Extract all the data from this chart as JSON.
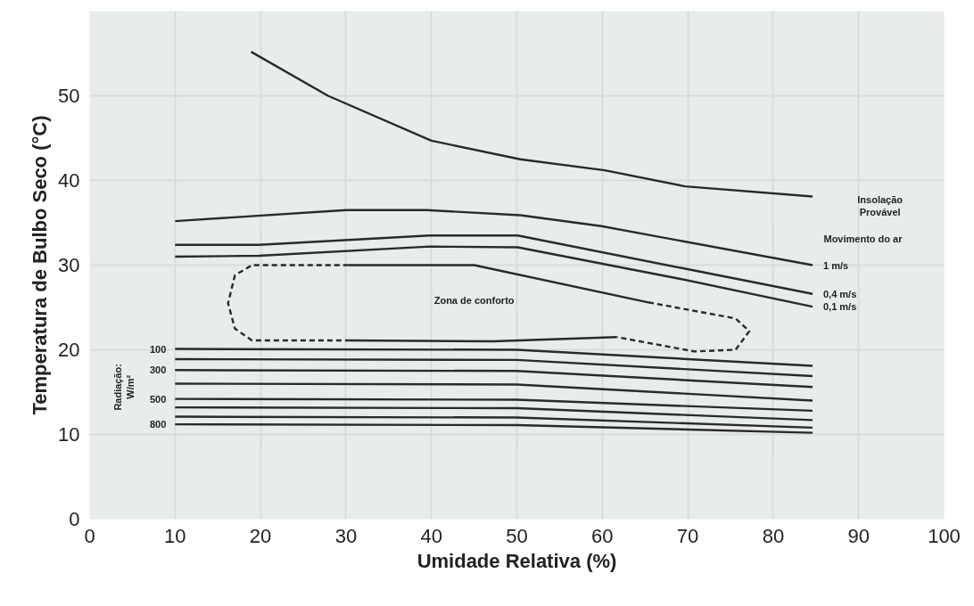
{
  "chart_data": {
    "type": "line",
    "xlabel": "Umidade Relativa (%)",
    "ylabel": "Temperatura de Bulbo Seco (°C)",
    "xlim": [
      0,
      100
    ],
    "ylim": [
      0,
      60
    ],
    "xticks": [
      0,
      10,
      20,
      30,
      40,
      50,
      60,
      70,
      80,
      90,
      100
    ],
    "yticks": [
      0,
      10,
      20,
      30,
      40,
      50
    ],
    "grid": true,
    "marker": "none",
    "series": [
      {
        "color": "#2a2a2a",
        "line_style": "solid",
        "x": [
          18.9,
          27.9,
          40,
          50.4,
          60.3,
          69.7,
          84.6
        ],
        "values": [
          55.2,
          50,
          44.7,
          42.5,
          41.2,
          39.3,
          38.1
        ]
      },
      {
        "name": "1  m/s",
        "color": "#2a2a2a",
        "line_style": "solid",
        "x": [
          10,
          30,
          39.5,
          50.4,
          59.9,
          84.6
        ],
        "values": [
          35.2,
          36.5,
          36.5,
          35.9,
          34.6,
          30.0
        ]
      },
      {
        "name": "0,4 m/s",
        "color": "#2a2a2a",
        "line_style": "solid",
        "x": [
          10,
          19.8,
          39.8,
          50.1,
          70.1,
          84.6
        ],
        "values": [
          32.4,
          32.4,
          33.5,
          33.5,
          29.5,
          26.6
        ]
      },
      {
        "name": "0,1 m/s",
        "color": "#2a2a2a",
        "line_style": "solid",
        "x": [
          10,
          19.8,
          39.8,
          50.1,
          69,
          84.6
        ],
        "values": [
          31.0,
          31.1,
          32.2,
          32.1,
          28.4,
          25.1
        ]
      },
      {
        "color": "#2a2a2a",
        "line_style": "dashed",
        "x": [
          30.3,
          19,
          17,
          16.2,
          17,
          19,
          30.3
        ],
        "values": [
          30.0,
          30.0,
          28.8,
          25.5,
          22.5,
          21.1,
          21.1
        ]
      },
      {
        "color": "#2a2a2a",
        "line_style": "solid",
        "x": [
          30.3,
          45,
          65.4
        ],
        "values": [
          30.0,
          30.0,
          25.6
        ]
      },
      {
        "color": "#2a2a2a",
        "line_style": "dashed",
        "x": [
          65.4,
          75.6,
          77.2,
          75.6,
          70.8,
          61.7
        ],
        "values": [
          25.6,
          23.7,
          22.2,
          20.0,
          19.8,
          21.5
        ]
      },
      {
        "color": "#2a2a2a",
        "line_style": "solid",
        "x": [
          61.7,
          47.2,
          30.3
        ],
        "values": [
          21.5,
          21.0,
          21.1
        ]
      },
      {
        "name": "100",
        "color": "#2a2a2a",
        "line_style": "solid",
        "x": [
          84.6,
          50,
          10
        ],
        "values": [
          18.1,
          20.0,
          20.1
        ]
      },
      {
        "color": "#2a2a2a",
        "line_style": "solid",
        "x": [
          84.6,
          50,
          10
        ],
        "values": [
          16.9,
          18.8,
          18.9
        ]
      },
      {
        "name": "300",
        "color": "#2a2a2a",
        "line_style": "solid",
        "x": [
          84.6,
          50,
          10
        ],
        "values": [
          15.6,
          17.5,
          17.6
        ]
      },
      {
        "color": "#2a2a2a",
        "line_style": "solid",
        "x": [
          84.6,
          50,
          10
        ],
        "values": [
          14.0,
          15.9,
          16.0
        ]
      },
      {
        "name": "500",
        "color": "#2a2a2a",
        "line_style": "solid",
        "x": [
          84.6,
          50,
          10
        ],
        "values": [
          12.8,
          14.1,
          14.2
        ]
      },
      {
        "color": "#2a2a2a",
        "line_style": "solid",
        "x": [
          84.6,
          50,
          10
        ],
        "values": [
          11.7,
          13.1,
          13.2
        ]
      },
      {
        "color": "#2a2a2a",
        "line_style": "solid",
        "x": [
          84.6,
          50,
          10
        ],
        "values": [
          10.8,
          12.0,
          12.1
        ]
      },
      {
        "name": "800",
        "color": "#2a2a2a",
        "line_style": "solid",
        "x": [
          84.6,
          50,
          10
        ],
        "values": [
          10.2,
          11.1,
          11.2
        ]
      }
    ],
    "annotations": [
      "Zona de conforto",
      "Insolação\nProvável",
      "Movimento do ar",
      "Radiação:\nW/m²"
    ]
  }
}
